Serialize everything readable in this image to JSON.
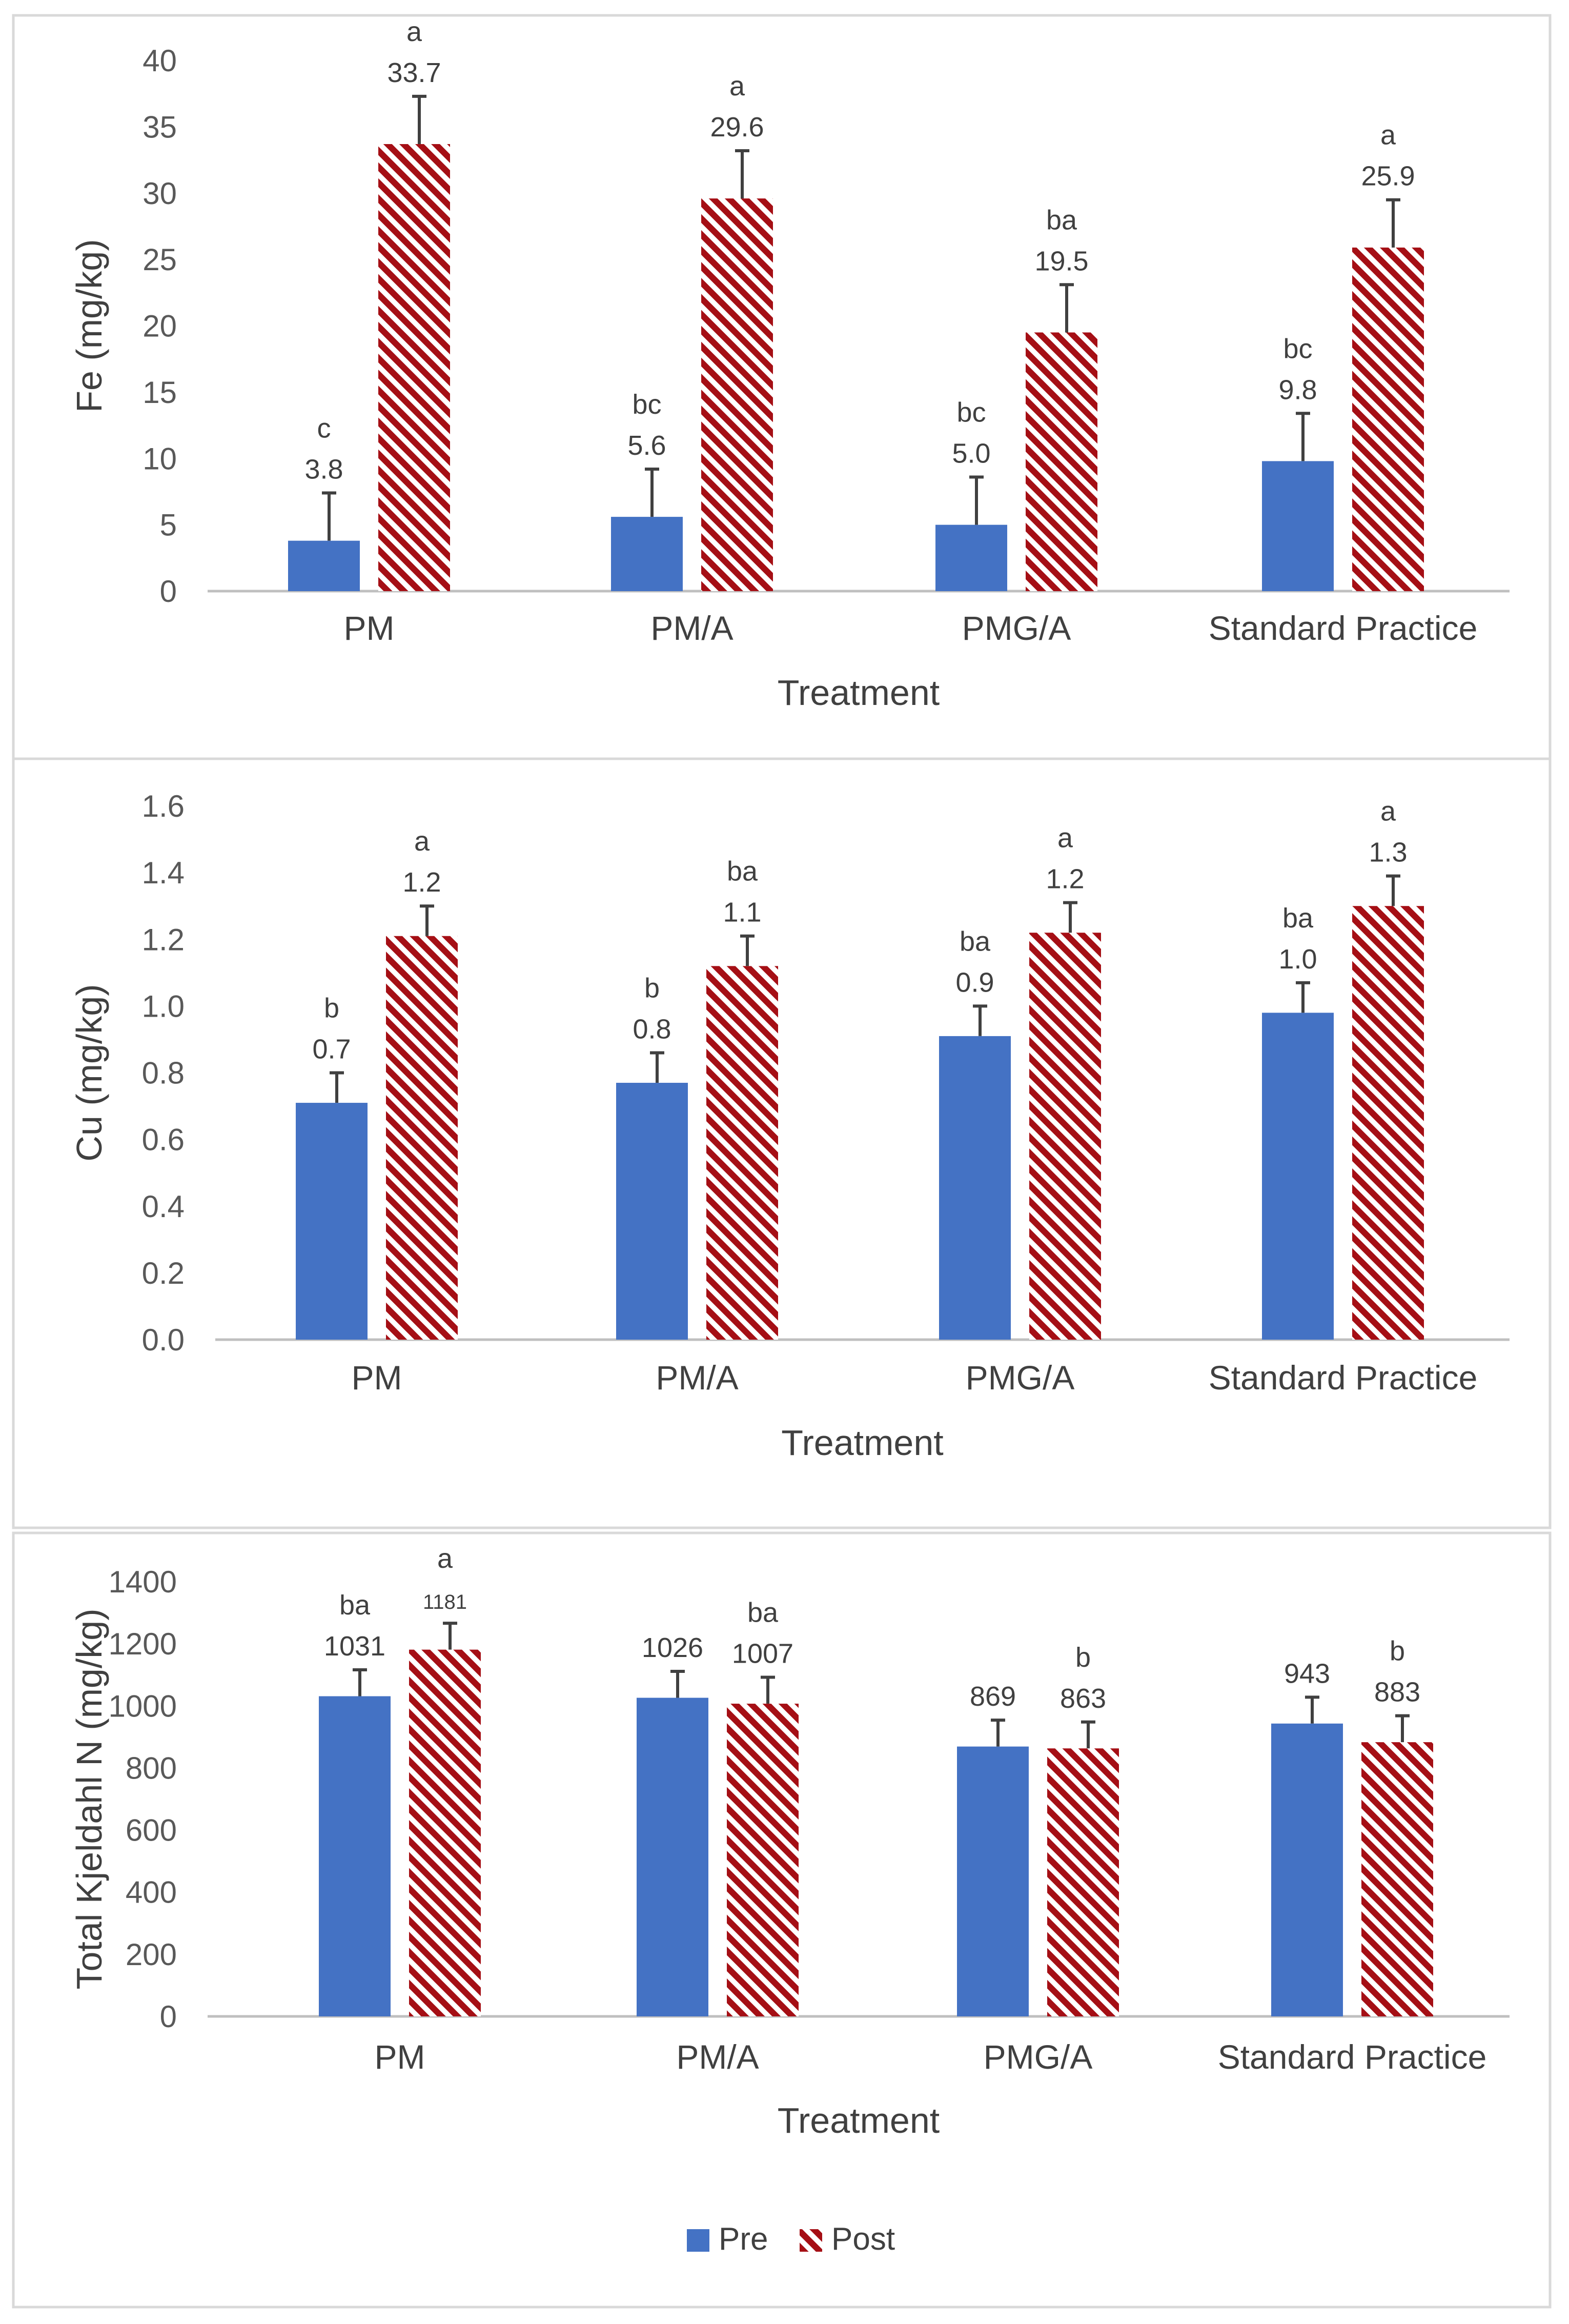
{
  "colors": {
    "pre": "#4472c4",
    "post": "#a50f15",
    "post_bg": "#ffffff"
  },
  "legend": {
    "items": [
      {
        "name": "Pre",
        "series": "pre"
      },
      {
        "name": "Post",
        "series": "post"
      }
    ]
  },
  "chart_data": [
    {
      "type": "bar",
      "categories": [
        "PM",
        "PM/A",
        "PMG/A",
        "Standard Practice"
      ],
      "xlabel": "Treatment",
      "ylabel": "Fe (mg/kg)",
      "ylim": [
        0,
        40
      ],
      "yticks": [
        "0",
        "5",
        "10",
        "15",
        "20",
        "25",
        "30",
        "35",
        "40"
      ],
      "series": [
        {
          "name": "Pre",
          "values": [
            3.8,
            5.6,
            5.0,
            9.8
          ],
          "labels": [
            "3.8",
            "5.6",
            "5.0",
            "9.8"
          ],
          "sig": [
            "c",
            "bc",
            "bc",
            "bc"
          ],
          "error": [
            3.6,
            3.6,
            3.6,
            3.6
          ]
        },
        {
          "name": "Post",
          "values": [
            33.7,
            29.6,
            19.5,
            25.9
          ],
          "labels": [
            "33.7",
            "29.6",
            "19.5",
            "25.9"
          ],
          "sig": [
            "a",
            "a",
            "ba",
            "a"
          ],
          "error": [
            3.6,
            3.6,
            3.6,
            3.6
          ]
        }
      ]
    },
    {
      "type": "bar",
      "categories": [
        "PM",
        "PM/A",
        "PMG/A",
        "Standard Practice"
      ],
      "xlabel": "Treatment",
      "ylabel": "Cu (mg/kg)",
      "ylim": [
        0,
        1.6
      ],
      "yticks": [
        "0.0",
        "0.2",
        "0.4",
        "0.6",
        "0.8",
        "1.0",
        "1.2",
        "1.4",
        "1.6"
      ],
      "series": [
        {
          "name": "Pre",
          "values": [
            0.71,
            0.77,
            0.91,
            0.98
          ],
          "labels": [
            "0.7",
            "0.8",
            "0.9",
            "1.0"
          ],
          "sig": [
            "b",
            "b",
            "ba",
            "ba"
          ],
          "error": [
            0.09,
            0.09,
            0.09,
            0.09
          ]
        },
        {
          "name": "Post",
          "values": [
            1.21,
            1.12,
            1.22,
            1.3
          ],
          "labels": [
            "1.2",
            "1.1",
            "1.2",
            "1.3"
          ],
          "sig": [
            "a",
            "ba",
            "a",
            "a"
          ],
          "error": [
            0.09,
            0.09,
            0.09,
            0.09
          ]
        }
      ]
    },
    {
      "type": "bar",
      "categories": [
        "PM",
        "PM/A",
        "PMG/A",
        "Standard Practice"
      ],
      "xlabel": "Treatment",
      "ylabel": "Total Kjeldahl N (mg/kg)",
      "ylim": [
        0,
        1400
      ],
      "yticks": [
        "0",
        "200",
        "400",
        "600",
        "800",
        "1000",
        "1200",
        "1400"
      ],
      "series": [
        {
          "name": "Pre",
          "values": [
            1031,
            1026,
            869,
            943
          ],
          "labels": [
            "1031",
            "1026",
            "869",
            "943"
          ],
          "sig": [
            "ba",
            "",
            "",
            ""
          ],
          "error": [
            85,
            85,
            85,
            85
          ]
        },
        {
          "name": "Post",
          "values": [
            1181,
            1007,
            863,
            883
          ],
          "labels": [
            "1181",
            "1007",
            "863",
            "883"
          ],
          "sig": [
            "a",
            "ba",
            "b",
            "b"
          ],
          "error": [
            85,
            85,
            85,
            85
          ]
        }
      ]
    }
  ]
}
